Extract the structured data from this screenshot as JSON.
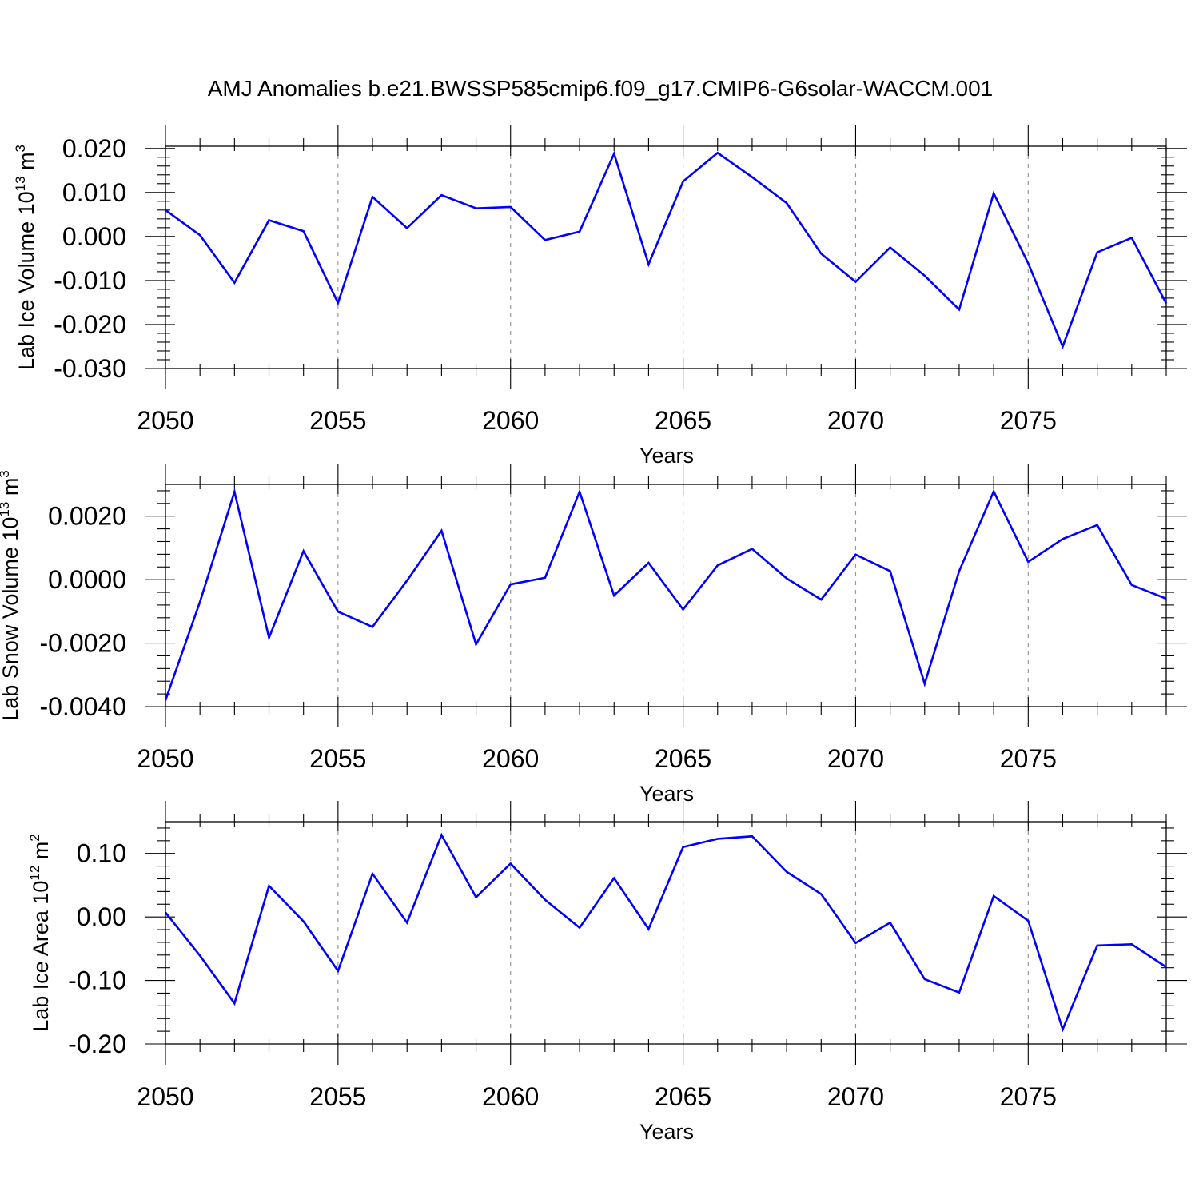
{
  "title": "AMJ Anomalies b.e21.BWSSP585cmip6.f09_g17.CMIP6-G6solar-WACCM.001",
  "colors": {
    "line": "#0000ff",
    "axis": "#000000",
    "grid": "#999999",
    "background": "#ffffff"
  },
  "chart_data": [
    {
      "type": "line",
      "ylabel": "Lab Ice Volume 10",
      "ylabel_exp": "13",
      "ylabel_unit": " m",
      "ylabel_unit_exp": "3",
      "xlabel": "Years",
      "xlim": [
        2050,
        2079
      ],
      "ylim": [
        -0.03,
        0.0205
      ],
      "yticks": [
        -0.03,
        -0.02,
        -0.01,
        0.0,
        0.01,
        0.02
      ],
      "ytick_labels": [
        "-0.030",
        "-0.020",
        "-0.010",
        "0.000",
        "0.010",
        "0.020"
      ],
      "xticks": [
        2050,
        2055,
        2060,
        2065,
        2070,
        2075
      ],
      "xtick_labels": [
        "2050",
        "2055",
        "2060",
        "2065",
        "2070",
        "2075"
      ],
      "x": [
        2050,
        2051,
        2052,
        2053,
        2054,
        2055,
        2056,
        2057,
        2058,
        2059,
        2060,
        2061,
        2062,
        2063,
        2064,
        2065,
        2066,
        2067,
        2068,
        2069,
        2070,
        2071,
        2072,
        2073,
        2074,
        2075,
        2076,
        2077,
        2078,
        2079
      ],
      "series": [
        {
          "name": "Lab Ice Volume",
          "values": [
            0.006,
            0.0003,
            -0.0105,
            0.0037,
            0.0012,
            -0.0151,
            0.009,
            0.0019,
            0.0094,
            0.0064,
            0.0067,
            -0.0008,
            0.0011,
            0.0188,
            -0.0063,
            0.0125,
            0.019,
            0.0135,
            0.0076,
            -0.0039,
            -0.0103,
            -0.0025,
            -0.0089,
            -0.0166,
            0.0098,
            -0.0061,
            -0.025,
            -0.0036,
            -0.0003,
            -0.0152
          ]
        }
      ]
    },
    {
      "type": "line",
      "ylabel": "Lab Snow Volume 10",
      "ylabel_exp": "13",
      "ylabel_unit": " m",
      "ylabel_unit_exp": "3",
      "xlabel": "Years",
      "xlim": [
        2050,
        2079
      ],
      "ylim": [
        -0.004,
        0.003
      ],
      "yticks": [
        -0.004,
        -0.002,
        0.0,
        0.002
      ],
      "ytick_labels": [
        "-0.0040",
        "-0.0020",
        "0.0000",
        "0.0020"
      ],
      "xticks": [
        2050,
        2055,
        2060,
        2065,
        2070,
        2075
      ],
      "xtick_labels": [
        "2050",
        "2055",
        "2060",
        "2065",
        "2070",
        "2075"
      ],
      "x": [
        2050,
        2051,
        2052,
        2053,
        2054,
        2055,
        2056,
        2057,
        2058,
        2059,
        2060,
        2061,
        2062,
        2063,
        2064,
        2065,
        2066,
        2067,
        2068,
        2069,
        2070,
        2071,
        2072,
        2073,
        2074,
        2075,
        2076,
        2077,
        2078,
        2079
      ],
      "series": [
        {
          "name": "Lab Snow Volume",
          "values": [
            -0.0038,
            -0.0007,
            0.00277,
            -0.00183,
            0.0009,
            -0.00101,
            -0.00149,
            -3e-05,
            0.00154,
            -0.00204,
            -0.00015,
            6e-05,
            0.00277,
            -0.0005,
            0.00053,
            -0.00094,
            0.00045,
            0.00097,
            4e-05,
            -0.00063,
            0.00079,
            0.00027,
            -0.00328,
            0.00027,
            0.00278,
            0.00056,
            0.00128,
            0.00172,
            -0.00017,
            -0.0006
          ]
        }
      ]
    },
    {
      "type": "line",
      "ylabel": "Lab Ice Area 10",
      "ylabel_exp": "12",
      "ylabel_unit": " m",
      "ylabel_unit_exp": "2",
      "xlabel": "Years",
      "xlim": [
        2050,
        2079
      ],
      "ylim": [
        -0.2,
        0.15
      ],
      "yticks": [
        -0.2,
        -0.1,
        0.0,
        0.1
      ],
      "ytick_labels": [
        "-0.20",
        "-0.10",
        "0.00",
        "0.10"
      ],
      "xticks": [
        2050,
        2055,
        2060,
        2065,
        2070,
        2075
      ],
      "xtick_labels": [
        "2050",
        "2055",
        "2060",
        "2065",
        "2070",
        "2075"
      ],
      "x": [
        2050,
        2051,
        2052,
        2053,
        2054,
        2055,
        2056,
        2057,
        2058,
        2059,
        2060,
        2061,
        2062,
        2063,
        2064,
        2065,
        2066,
        2067,
        2068,
        2069,
        2070,
        2071,
        2072,
        2073,
        2074,
        2075,
        2076,
        2077,
        2078,
        2079
      ],
      "series": [
        {
          "name": "Lab Ice Area",
          "values": [
            0.007,
            -0.061,
            -0.136,
            0.049,
            -0.007,
            -0.085,
            0.068,
            -0.009,
            0.129,
            0.031,
            0.084,
            0.027,
            -0.017,
            0.061,
            -0.019,
            0.11,
            0.123,
            0.127,
            0.071,
            0.036,
            -0.041,
            -0.009,
            -0.098,
            -0.119,
            0.033,
            -0.006,
            -0.177,
            -0.045,
            -0.043,
            -0.079
          ]
        }
      ]
    }
  ]
}
